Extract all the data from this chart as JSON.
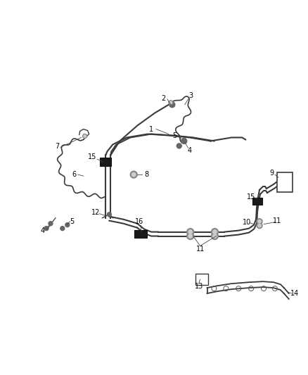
{
  "background_color": "#ffffff",
  "line_color": "#3a3a3a",
  "fig_width": 4.38,
  "fig_height": 5.33,
  "dpi": 100
}
